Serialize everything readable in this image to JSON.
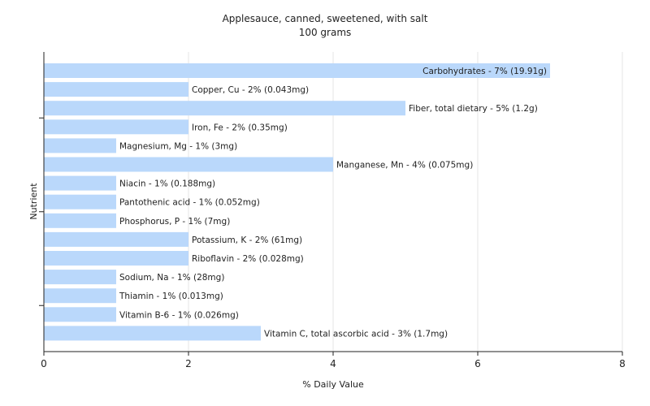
{
  "chart_data": {
    "type": "bar",
    "orientation": "horizontal",
    "title": "Applesauce, canned, sweetened, with salt",
    "subtitle": "100 grams",
    "xlabel": "% Daily Value",
    "ylabel": "Nutrient",
    "xlim": [
      0,
      8
    ],
    "xticks": [
      0,
      2,
      4,
      6,
      8
    ],
    "grid": true,
    "bar_color": "#bad8fb",
    "categories": [
      "Carbohydrates",
      "Copper, Cu",
      "Fiber, total dietary",
      "Iron, Fe",
      "Magnesium, Mg",
      "Manganese, Mn",
      "Niacin",
      "Pantothenic acid",
      "Phosphorus, P",
      "Potassium, K",
      "Riboflavin",
      "Sodium, Na",
      "Thiamin",
      "Vitamin B-6",
      "Vitamin C, total ascorbic acid"
    ],
    "values": [
      7,
      2,
      5,
      2,
      1,
      4,
      1,
      1,
      1,
      2,
      2,
      1,
      1,
      1,
      3
    ],
    "labels": [
      "Carbohydrates - 7% (19.91g)",
      "Copper, Cu - 2% (0.043mg)",
      "Fiber, total dietary - 5% (1.2g)",
      "Iron, Fe - 2% (0.35mg)",
      "Magnesium, Mg - 1% (3mg)",
      "Manganese, Mn - 4% (0.075mg)",
      "Niacin - 1% (0.188mg)",
      "Pantothenic acid - 1% (0.052mg)",
      "Phosphorus, P - 1% (7mg)",
      "Potassium, K - 2% (61mg)",
      "Riboflavin - 2% (0.028mg)",
      "Sodium, Na - 1% (28mg)",
      "Thiamin - 1% (0.013mg)",
      "Vitamin B-6 - 1% (0.026mg)",
      "Vitamin C, total ascorbic acid - 3% (1.7mg)"
    ]
  }
}
